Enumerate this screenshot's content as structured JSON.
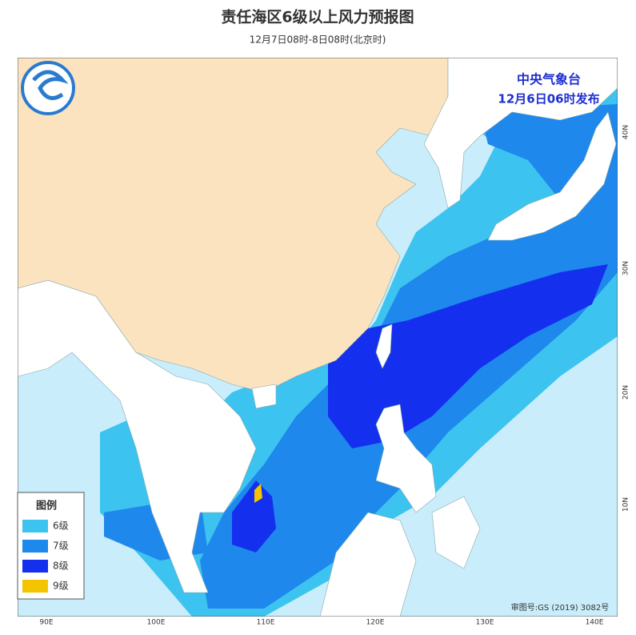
{
  "header": {
    "title": "责任海区6级以上风力预报图",
    "subtitle": "12月7日08时-8日08时(北京时)"
  },
  "agency": {
    "name": "中央气象台",
    "issued": "12月6日06时发布"
  },
  "legend": {
    "title": "图例",
    "items": [
      {
        "label": "6级",
        "color": "#3cc3f0"
      },
      {
        "label": "7级",
        "color": "#1e88ec"
      },
      {
        "label": "8级",
        "color": "#1430ee"
      },
      {
        "label": "9级",
        "color": "#f5c400"
      }
    ]
  },
  "axes": {
    "longitude": [
      "90E",
      "100E",
      "110E",
      "120E",
      "130E",
      "140E"
    ],
    "latitude": [
      "40N",
      "30N",
      "20N",
      "10N"
    ]
  },
  "footer": {
    "approval": "审图号:GS (2019) 3082号"
  }
}
